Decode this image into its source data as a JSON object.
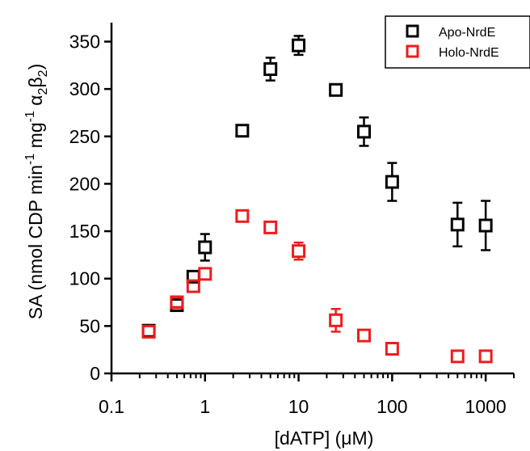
{
  "chart_data": {
    "type": "scatter",
    "xlabel": "[dATP] (μM)",
    "ylabel_parts": {
      "main": "SA (nmol CDP min",
      "sup1": "-1",
      "mid": " mg",
      "sup2": "-1",
      "tail": " α",
      "sub1": "2",
      "tail2": "β",
      "sub2": "2",
      "close": ")"
    },
    "x_scale": "log",
    "xlim": [
      0.1,
      2000
    ],
    "ylim": [
      0,
      370
    ],
    "x_ticks": [
      {
        "value": 0.1,
        "label": "0.1"
      },
      {
        "value": 1,
        "label": "1"
      },
      {
        "value": 10,
        "label": "10"
      },
      {
        "value": 100,
        "label": "100"
      },
      {
        "value": 1000,
        "label": "1000"
      }
    ],
    "y_ticks": [
      {
        "value": 0,
        "label": "0"
      },
      {
        "value": 50,
        "label": "50"
      },
      {
        "value": 100,
        "label": "100"
      },
      {
        "value": 150,
        "label": "150"
      },
      {
        "value": 200,
        "label": "200"
      },
      {
        "value": 250,
        "label": "250"
      },
      {
        "value": 300,
        "label": "300"
      },
      {
        "value": 350,
        "label": "350"
      }
    ],
    "grid": false,
    "legend_position": "top-right",
    "series": [
      {
        "name": "Apo-NrdE",
        "color": "#000000",
        "marker": "open-square",
        "points": [
          {
            "x": 0.25,
            "y": 45,
            "err": 0
          },
          {
            "x": 0.5,
            "y": 72,
            "err": 0
          },
          {
            "x": 0.75,
            "y": 102,
            "err": 0
          },
          {
            "x": 1,
            "y": 133,
            "err": 14
          },
          {
            "x": 2.5,
            "y": 256,
            "err": 0
          },
          {
            "x": 5,
            "y": 321,
            "err": 12
          },
          {
            "x": 10,
            "y": 346,
            "err": 10
          },
          {
            "x": 25,
            "y": 299,
            "err": 0
          },
          {
            "x": 50,
            "y": 255,
            "err": 15
          },
          {
            "x": 100,
            "y": 202,
            "err": 20
          },
          {
            "x": 500,
            "y": 157,
            "err": 23
          },
          {
            "x": 1000,
            "y": 156,
            "err": 26
          }
        ]
      },
      {
        "name": "Holo-NrdE",
        "color": "#ee1c1c",
        "marker": "open-square",
        "points": [
          {
            "x": 0.25,
            "y": 44,
            "err": 6
          },
          {
            "x": 0.5,
            "y": 75,
            "err": 5
          },
          {
            "x": 0.75,
            "y": 92,
            "err": 0
          },
          {
            "x": 1,
            "y": 105,
            "err": 0
          },
          {
            "x": 2.5,
            "y": 166,
            "err": 0
          },
          {
            "x": 5,
            "y": 154,
            "err": 0
          },
          {
            "x": 10,
            "y": 129,
            "err": 9
          },
          {
            "x": 25,
            "y": 56,
            "err": 12
          },
          {
            "x": 50,
            "y": 40,
            "err": 0
          },
          {
            "x": 100,
            "y": 26,
            "err": 0
          },
          {
            "x": 500,
            "y": 18,
            "err": 0
          },
          {
            "x": 1000,
            "y": 18,
            "err": 0
          }
        ]
      }
    ]
  }
}
